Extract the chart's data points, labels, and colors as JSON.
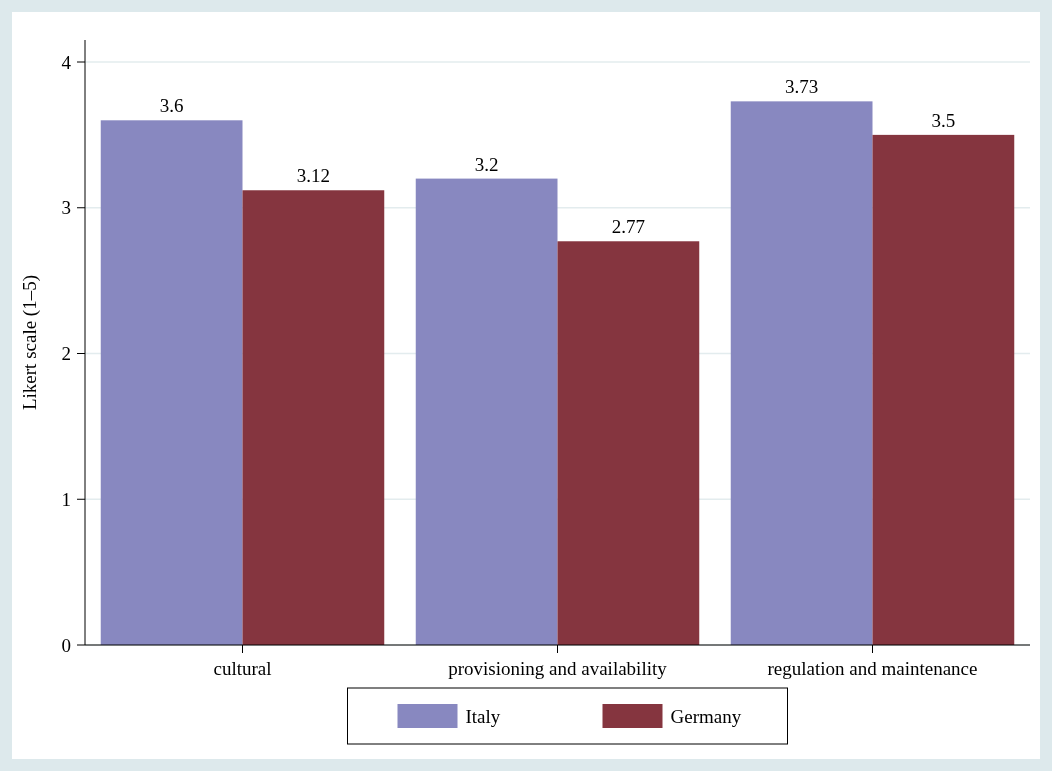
{
  "chart_data": {
    "type": "bar",
    "ylabel": "Likert scale (1–5)",
    "categories": [
      "cultural",
      "provisioning and availability",
      "regulation and maintenance"
    ],
    "series": [
      {
        "name": "Italy",
        "color": "#8888c0",
        "values": [
          3.6,
          3.2,
          3.73
        ]
      },
      {
        "name": "Germany",
        "color": "#85353f",
        "values": [
          3.12,
          2.77,
          3.5
        ]
      }
    ],
    "ylim": [
      0,
      4
    ],
    "yticks": [
      0,
      1,
      2,
      3,
      4
    ],
    "grid": "y",
    "legend": "bottom",
    "data_labels": true
  }
}
